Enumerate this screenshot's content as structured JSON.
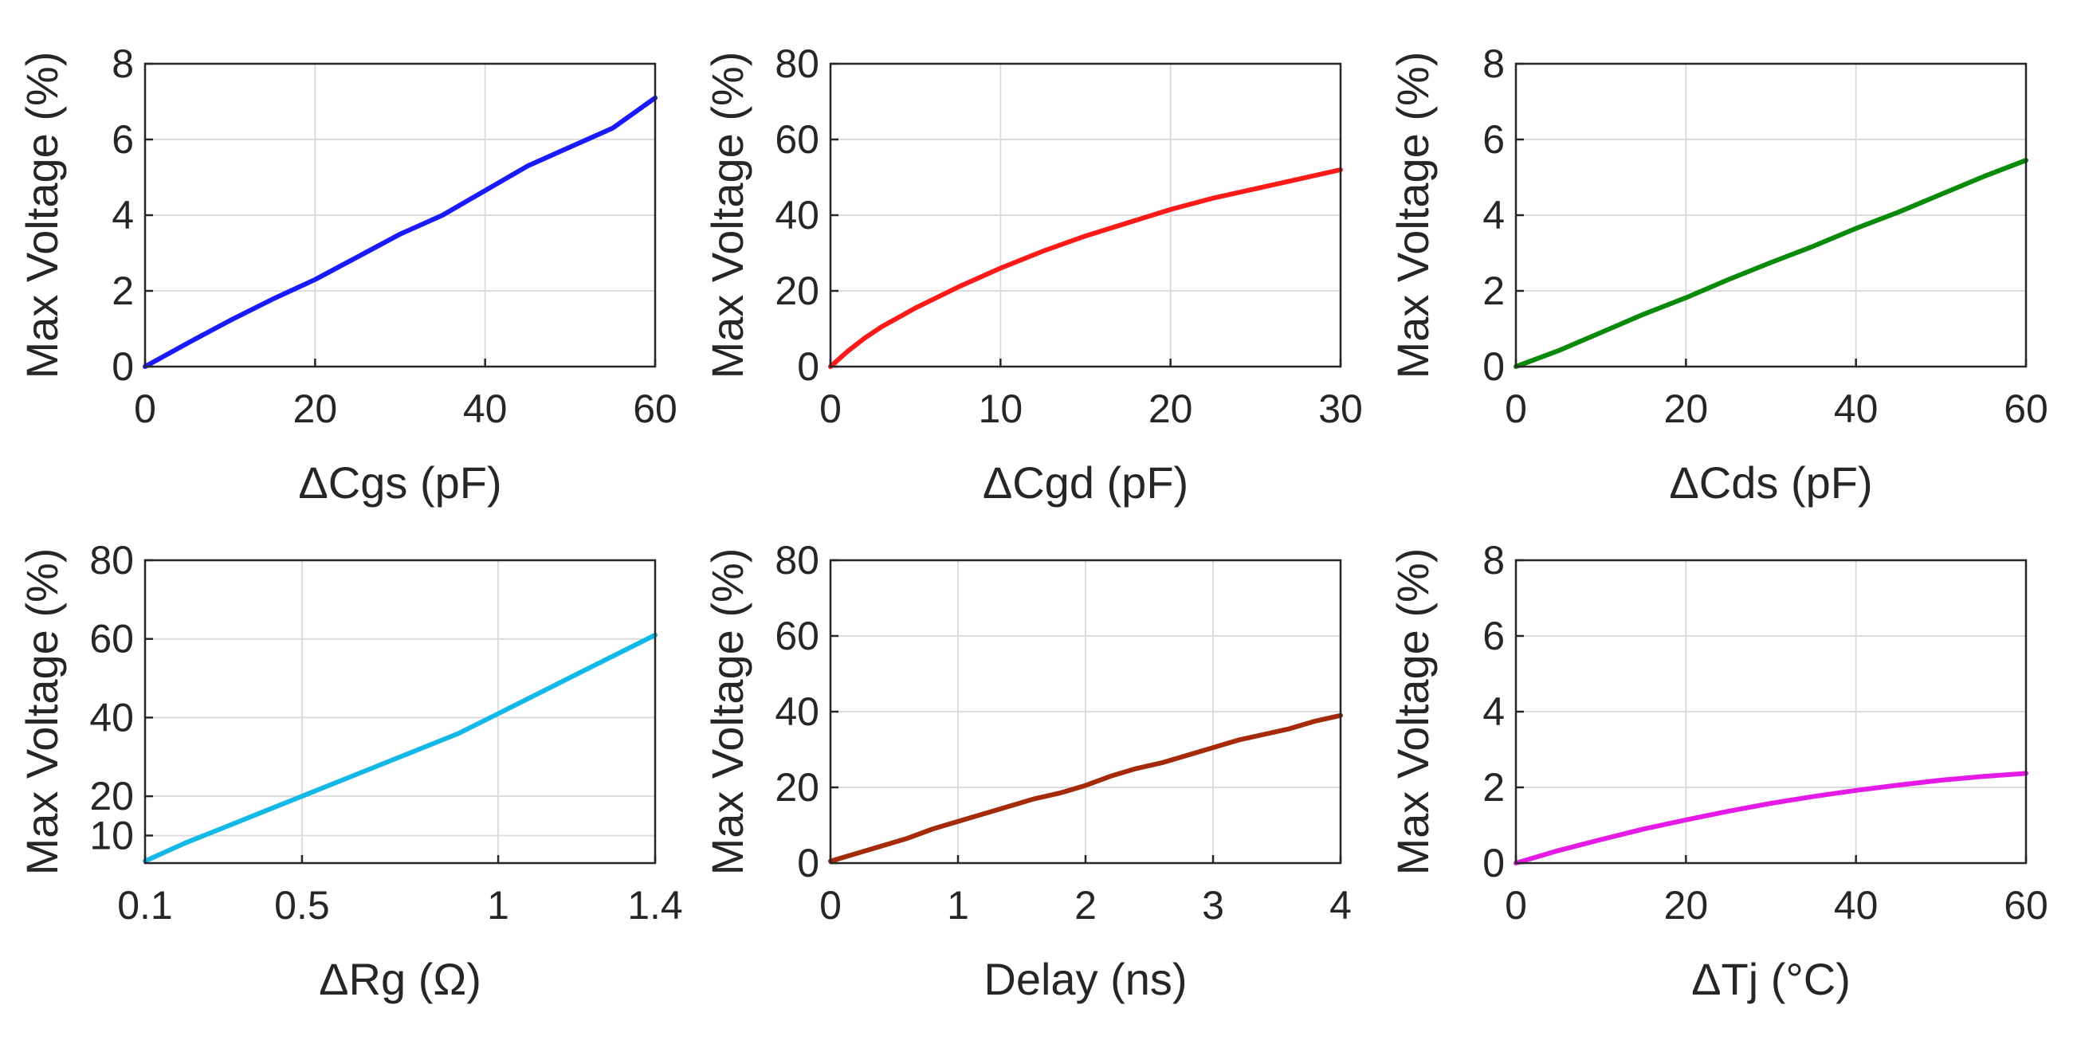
{
  "chart_data": [
    {
      "type": "line",
      "xlabel": "ΔCgs (pF)",
      "ylabel": "Max Voltage (%)",
      "xlim": [
        0,
        60
      ],
      "ylim": [
        0,
        8
      ],
      "xticks": [
        {
          "value": 0,
          "label": "0"
        },
        {
          "value": 20,
          "label": "20"
        },
        {
          "value": 40,
          "label": "40"
        },
        {
          "value": 60,
          "label": "60"
        }
      ],
      "yticks": [
        {
          "value": 0,
          "label": "0"
        },
        {
          "value": 2,
          "label": "2"
        },
        {
          "value": 4,
          "label": "4"
        },
        {
          "value": 6,
          "label": "6"
        },
        {
          "value": 8,
          "label": "8"
        }
      ],
      "grid": true,
      "color": "#1a1aff",
      "series": [
        {
          "x": [
            0,
            5,
            10,
            15,
            20,
            25,
            30,
            35,
            40,
            45,
            50,
            55,
            60
          ],
          "y": [
            0,
            0.62,
            1.22,
            1.78,
            2.3,
            2.9,
            3.5,
            4.0,
            4.65,
            5.3,
            5.8,
            6.3,
            7.1
          ]
        }
      ]
    },
    {
      "type": "line",
      "xlabel": "ΔCgd (pF)",
      "ylabel": "Max Voltage (%)",
      "xlim": [
        0,
        30
      ],
      "ylim": [
        0,
        80
      ],
      "xticks": [
        {
          "value": 0,
          "label": "0"
        },
        {
          "value": 10,
          "label": "10"
        },
        {
          "value": 20,
          "label": "20"
        },
        {
          "value": 30,
          "label": "30"
        }
      ],
      "yticks": [
        {
          "value": 0,
          "label": "0"
        },
        {
          "value": 20,
          "label": "20"
        },
        {
          "value": 40,
          "label": "40"
        },
        {
          "value": 60,
          "label": "60"
        },
        {
          "value": 80,
          "label": "80"
        }
      ],
      "grid": true,
      "color": "#ff1a1a",
      "series": [
        {
          "x": [
            0,
            1,
            2,
            3,
            5,
            7.5,
            10,
            12.5,
            15,
            17.5,
            20,
            22.5,
            25,
            27.5,
            30
          ],
          "y": [
            0,
            4,
            7.5,
            10.5,
            15.5,
            21,
            26,
            30.5,
            34.5,
            38,
            41.5,
            44.5,
            47,
            49.5,
            52
          ]
        }
      ]
    },
    {
      "type": "line",
      "xlabel": "ΔCds (pF)",
      "ylabel": "Max Voltage (%)",
      "xlim": [
        0,
        60
      ],
      "ylim": [
        0,
        8
      ],
      "xticks": [
        {
          "value": 0,
          "label": "0"
        },
        {
          "value": 20,
          "label": "20"
        },
        {
          "value": 40,
          "label": "40"
        },
        {
          "value": 60,
          "label": "60"
        }
      ],
      "yticks": [
        {
          "value": 0,
          "label": "0"
        },
        {
          "value": 2,
          "label": "2"
        },
        {
          "value": 4,
          "label": "4"
        },
        {
          "value": 6,
          "label": "6"
        },
        {
          "value": 8,
          "label": "8"
        }
      ],
      "grid": true,
      "color": "#0a8a0a",
      "series": [
        {
          "x": [
            0,
            5,
            10,
            15,
            20,
            25,
            30,
            35,
            40,
            45,
            50,
            55,
            60
          ],
          "y": [
            0,
            0.42,
            0.9,
            1.38,
            1.82,
            2.3,
            2.75,
            3.18,
            3.65,
            4.08,
            4.55,
            5.02,
            5.45
          ]
        }
      ]
    },
    {
      "type": "line",
      "xlabel": "ΔRg (Ω)",
      "ylabel": "Max Voltage (%)",
      "xlim": [
        0.1,
        1.4
      ],
      "ylim": [
        3,
        80
      ],
      "xticks": [
        {
          "value": 0.1,
          "label": "0.1"
        },
        {
          "value": 0.5,
          "label": "0.5"
        },
        {
          "value": 1,
          "label": "1"
        },
        {
          "value": 1.4,
          "label": "1.4"
        }
      ],
      "yticks": [
        {
          "value": 10,
          "label": "10"
        },
        {
          "value": 20,
          "label": "20"
        },
        {
          "value": 40,
          "label": "40"
        },
        {
          "value": 60,
          "label": "60"
        },
        {
          "value": 80,
          "label": "80"
        }
      ],
      "grid": true,
      "color": "#14b8e6",
      "series": [
        {
          "x": [
            0.1,
            0.2,
            0.3,
            0.4,
            0.5,
            0.6,
            0.7,
            0.8,
            0.9,
            1.0,
            1.1,
            1.2,
            1.3,
            1.4
          ],
          "y": [
            3.5,
            8,
            12,
            16,
            20,
            24,
            28,
            32,
            36,
            41,
            46,
            51,
            56,
            61
          ]
        }
      ]
    },
    {
      "type": "line",
      "xlabel": "Delay (ns)",
      "ylabel": "Max Voltage (%)",
      "xlim": [
        0,
        4
      ],
      "ylim": [
        0,
        80
      ],
      "xticks": [
        {
          "value": 0,
          "label": "0"
        },
        {
          "value": 1,
          "label": "1"
        },
        {
          "value": 2,
          "label": "2"
        },
        {
          "value": 3,
          "label": "3"
        },
        {
          "value": 4,
          "label": "4"
        }
      ],
      "yticks": [
        {
          "value": 0,
          "label": "0"
        },
        {
          "value": 20,
          "label": "20"
        },
        {
          "value": 40,
          "label": "40"
        },
        {
          "value": 60,
          "label": "60"
        },
        {
          "value": 80,
          "label": "80"
        }
      ],
      "grid": true,
      "color": "#a52a0a",
      "series": [
        {
          "x": [
            0,
            0.2,
            0.4,
            0.6,
            0.8,
            1.0,
            1.2,
            1.4,
            1.6,
            1.8,
            2.0,
            2.2,
            2.4,
            2.6,
            2.8,
            3.0,
            3.2,
            3.4,
            3.6,
            3.8,
            4.0
          ],
          "y": [
            0.5,
            2.5,
            4.5,
            6.5,
            9,
            11,
            13,
            15,
            17,
            18.5,
            20.5,
            23,
            25,
            26.5,
            28.5,
            30.5,
            32.5,
            34,
            35.5,
            37.5,
            39
          ]
        }
      ]
    },
    {
      "type": "line",
      "xlabel": "ΔTj (°C)",
      "ylabel": "Max Voltage (%)",
      "xlim": [
        0,
        60
      ],
      "ylim": [
        0,
        8
      ],
      "xticks": [
        {
          "value": 0,
          "label": "0"
        },
        {
          "value": 20,
          "label": "20"
        },
        {
          "value": 40,
          "label": "40"
        },
        {
          "value": 60,
          "label": "60"
        }
      ],
      "yticks": [
        {
          "value": 0,
          "label": "0"
        },
        {
          "value": 2,
          "label": "2"
        },
        {
          "value": 4,
          "label": "4"
        },
        {
          "value": 6,
          "label": "6"
        },
        {
          "value": 8,
          "label": "8"
        }
      ],
      "grid": true,
      "color": "#e61ae6",
      "series": [
        {
          "x": [
            0,
            5,
            10,
            15,
            20,
            25,
            30,
            35,
            40,
            45,
            50,
            55,
            60
          ],
          "y": [
            0,
            0.33,
            0.62,
            0.9,
            1.14,
            1.37,
            1.58,
            1.76,
            1.92,
            2.06,
            2.19,
            2.29,
            2.37
          ]
        }
      ]
    }
  ]
}
